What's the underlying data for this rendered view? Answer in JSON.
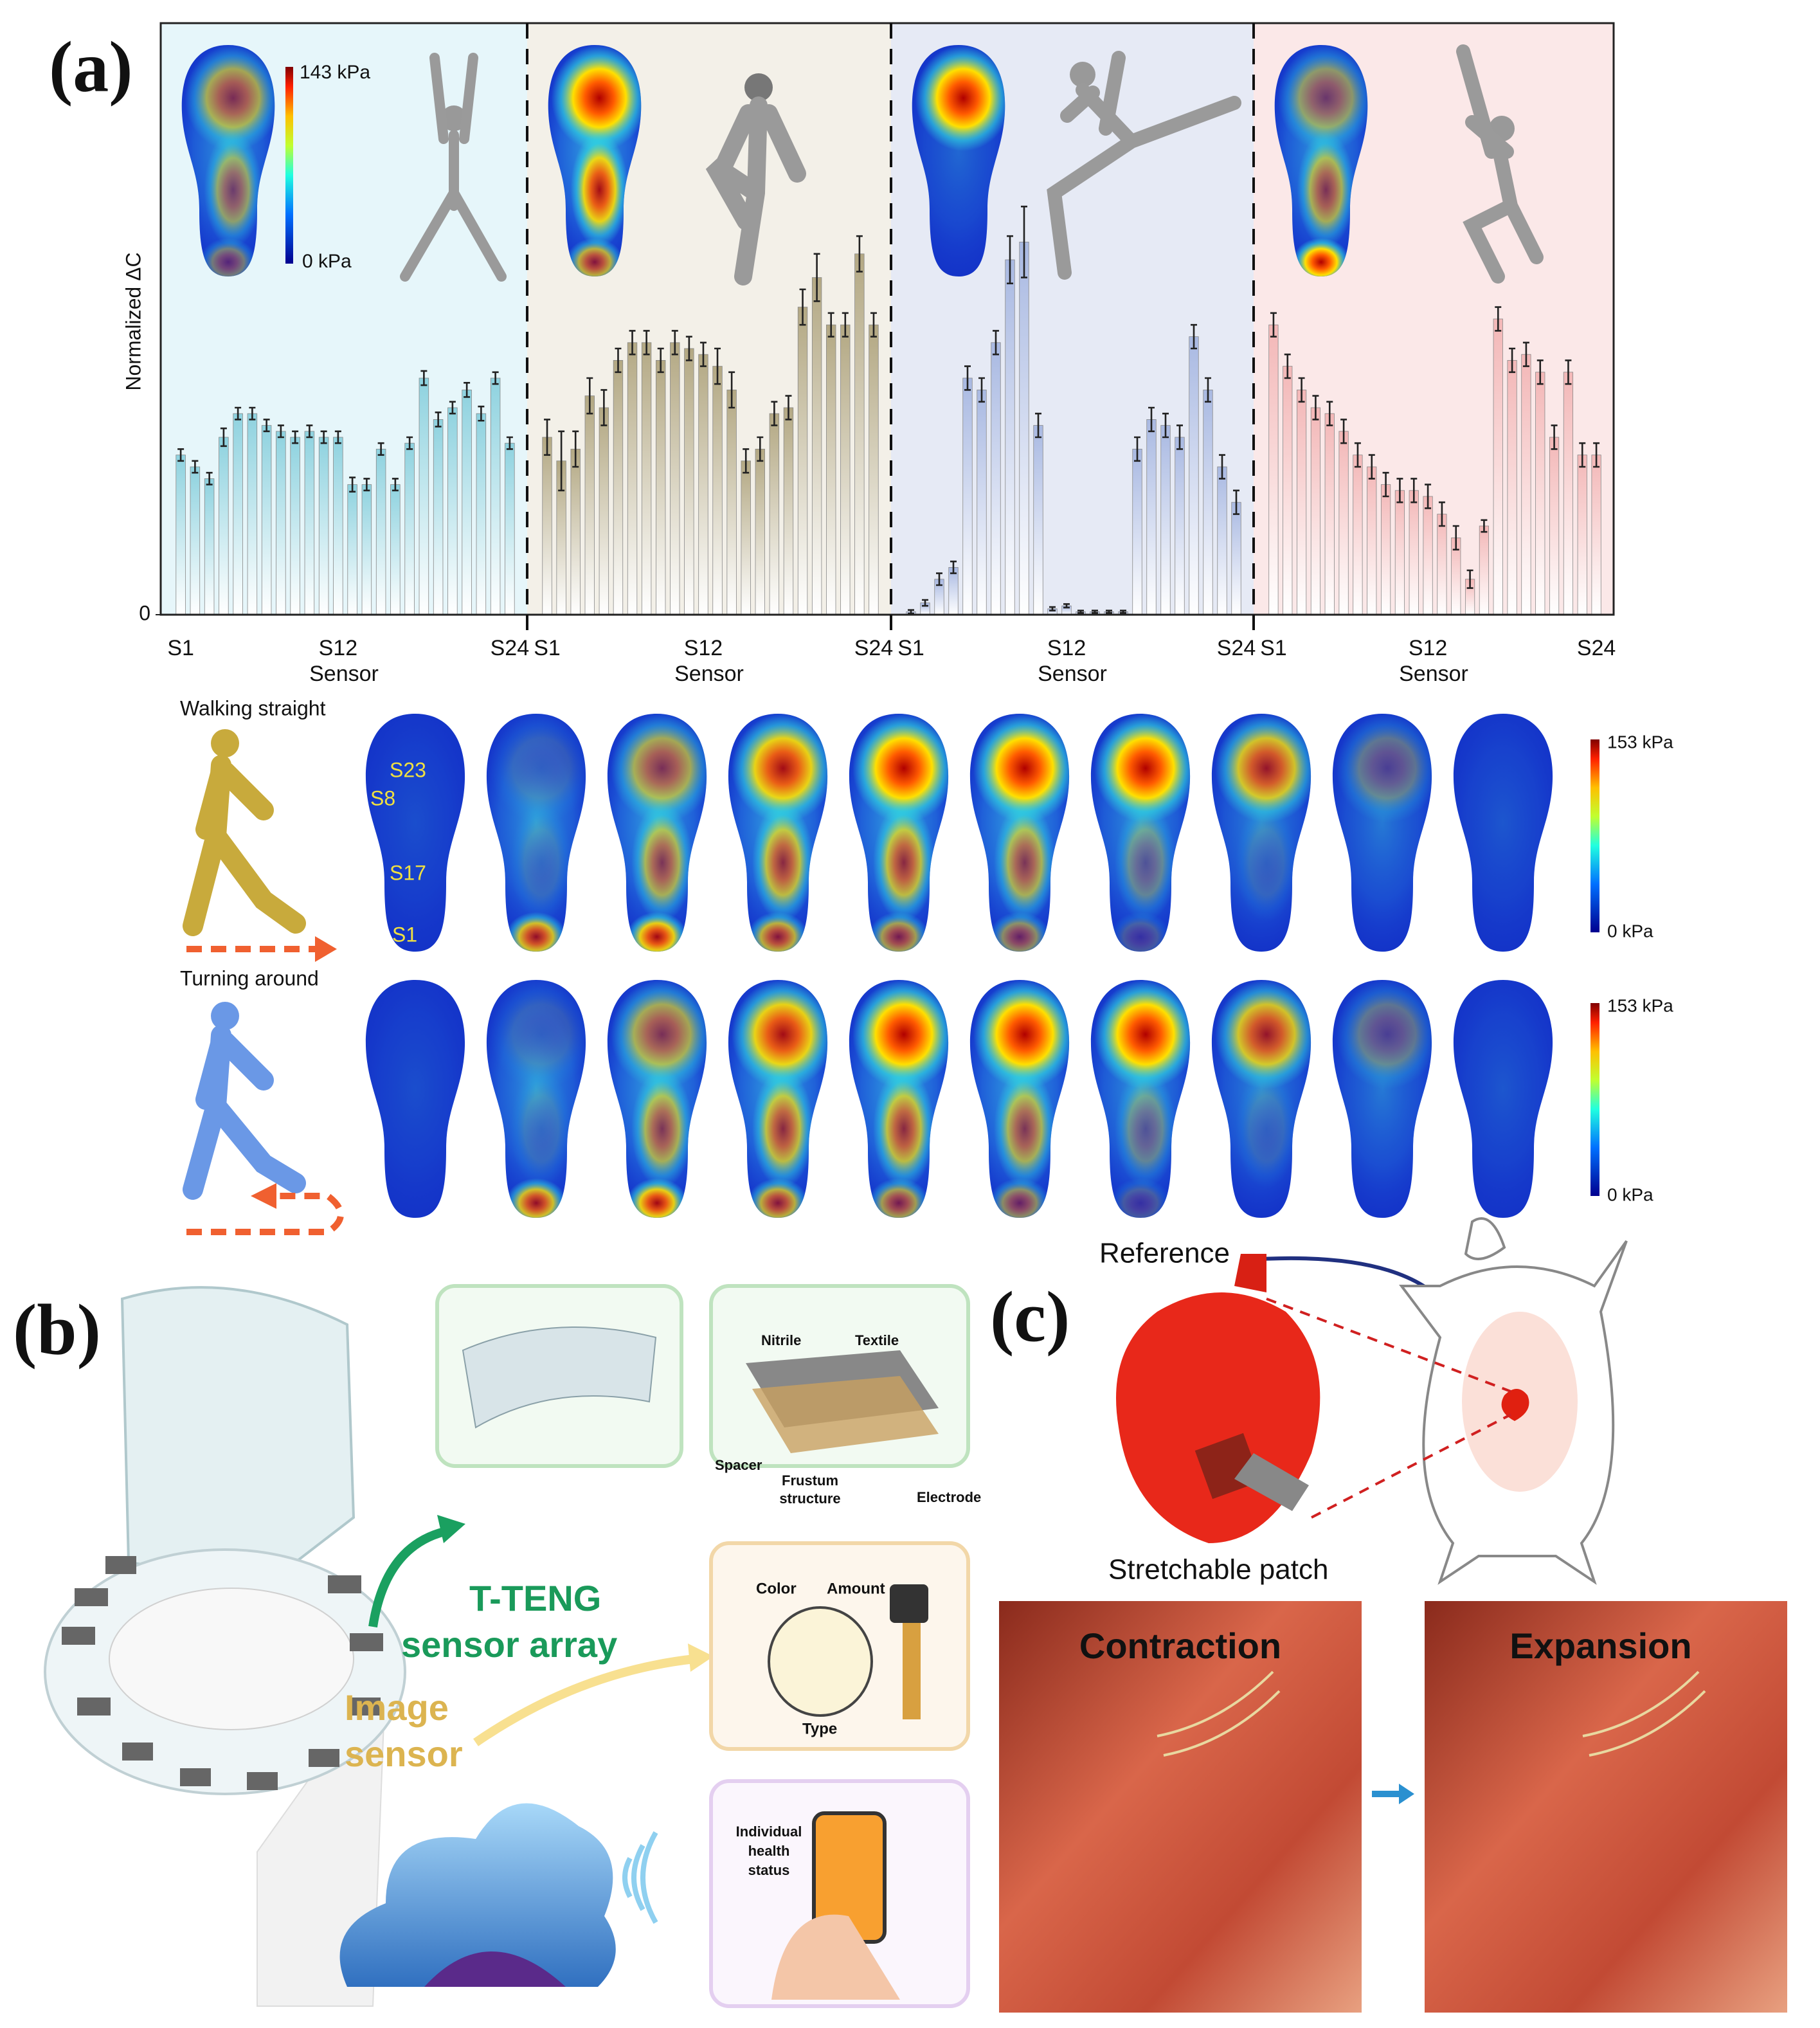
{
  "figure_labels": {
    "a": "(a)",
    "b": "(b)",
    "c": "(c)"
  },
  "chart_data": [
    {
      "type": "bar",
      "ylabel": "Normalized ΔC",
      "xlabel": "Sensor",
      "color": "#8ed2df",
      "background": "#e6f6fa",
      "categories": [
        "S1",
        null,
        null,
        null,
        null,
        null,
        null,
        null,
        null,
        null,
        null,
        "S12",
        null,
        null,
        null,
        null,
        null,
        null,
        null,
        null,
        null,
        null,
        null,
        "S24"
      ],
      "values": [
        0.27,
        0.25,
        0.23,
        0.3,
        0.34,
        0.34,
        0.32,
        0.31,
        0.3,
        0.31,
        0.3,
        0.3,
        0.22,
        0.22,
        0.28,
        0.22,
        0.29,
        0.4,
        0.33,
        0.35,
        0.38,
        0.34,
        0.4,
        0.29
      ],
      "errors": [
        0.01,
        0.01,
        0.01,
        0.015,
        0.01,
        0.01,
        0.01,
        0.01,
        0.01,
        0.01,
        0.01,
        0.01,
        0.012,
        0.01,
        0.01,
        0.01,
        0.01,
        0.012,
        0.012,
        0.01,
        0.012,
        0.012,
        0.01,
        0.01
      ],
      "ylim": [
        0,
        1
      ],
      "yticks": [
        0
      ]
    },
    {
      "type": "bar",
      "xlabel": "Sensor",
      "color": "#b3a883",
      "background": "#f3f0e8",
      "categories": [
        "S1",
        null,
        null,
        null,
        null,
        null,
        null,
        null,
        null,
        null,
        null,
        "S12",
        null,
        null,
        null,
        null,
        null,
        null,
        null,
        null,
        null,
        null,
        null,
        "S24"
      ],
      "values": [
        0.3,
        0.26,
        0.28,
        0.37,
        0.35,
        0.43,
        0.46,
        0.46,
        0.43,
        0.46,
        0.45,
        0.44,
        0.42,
        0.38,
        0.26,
        0.28,
        0.34,
        0.35,
        0.52,
        0.57,
        0.49,
        0.49,
        0.61,
        0.49
      ],
      "errors": [
        0.03,
        0.05,
        0.03,
        0.03,
        0.03,
        0.02,
        0.02,
        0.02,
        0.02,
        0.02,
        0.02,
        0.02,
        0.03,
        0.03,
        0.02,
        0.02,
        0.02,
        0.02,
        0.03,
        0.04,
        0.02,
        0.02,
        0.03,
        0.02
      ],
      "ylim": [
        0,
        1
      ]
    },
    {
      "type": "bar",
      "xlabel": "Sensor",
      "color": "#a9b9e2",
      "background": "#e6eaf5",
      "categories": [
        "S1",
        null,
        null,
        null,
        null,
        null,
        null,
        null,
        null,
        null,
        null,
        "S12",
        null,
        null,
        null,
        null,
        null,
        null,
        null,
        null,
        null,
        null,
        null,
        "S24"
      ],
      "values": [
        0.005,
        0.02,
        0.06,
        0.08,
        0.4,
        0.38,
        0.46,
        0.6,
        0.63,
        0.32,
        0.01,
        0.015,
        0.005,
        0.005,
        0.005,
        0.005,
        0.28,
        0.33,
        0.32,
        0.3,
        0.47,
        0.38,
        0.25,
        0.19
      ],
      "errors": [
        0.003,
        0.005,
        0.01,
        0.01,
        0.02,
        0.02,
        0.02,
        0.04,
        0.06,
        0.02,
        0.003,
        0.003,
        0.002,
        0.002,
        0.002,
        0.002,
        0.02,
        0.02,
        0.02,
        0.02,
        0.02,
        0.02,
        0.02,
        0.02
      ],
      "ylim": [
        0,
        1
      ]
    },
    {
      "type": "bar",
      "xlabel": "Sensor",
      "color": "#f3b7b7",
      "background": "#fbe8e8",
      "categories": [
        "S1",
        null,
        null,
        null,
        null,
        null,
        null,
        null,
        null,
        null,
        null,
        "S12",
        null,
        null,
        null,
        null,
        null,
        null,
        null,
        null,
        null,
        null,
        null,
        "S24"
      ],
      "values": [
        0.49,
        0.42,
        0.38,
        0.35,
        0.34,
        0.31,
        0.27,
        0.25,
        0.22,
        0.21,
        0.21,
        0.2,
        0.17,
        0.13,
        0.06,
        0.15,
        0.5,
        0.43,
        0.44,
        0.41,
        0.3,
        0.41,
        0.27,
        0.27
      ],
      "errors": [
        0.02,
        0.02,
        0.02,
        0.02,
        0.02,
        0.02,
        0.02,
        0.02,
        0.02,
        0.02,
        0.02,
        0.02,
        0.02,
        0.02,
        0.015,
        0.01,
        0.02,
        0.02,
        0.02,
        0.02,
        0.02,
        0.02,
        0.02,
        0.02
      ],
      "ylim": [
        0,
        1
      ]
    }
  ],
  "pose_scale": {
    "max": "143 kPa",
    "min": "0 kPa"
  },
  "gait": {
    "rows": [
      {
        "label": "Walking straight",
        "scale_max": "153 kPa",
        "scale_min": "0 kPa"
      },
      {
        "label": "Turning around",
        "scale_max": "153 kPa",
        "scale_min": "0 kPa"
      }
    ],
    "sensor_labels": [
      "S23",
      "S8",
      "S17",
      "S1"
    ]
  },
  "panel_b": {
    "layers": [
      "Nitrile",
      "Textile",
      "Spacer",
      "Electrode"
    ],
    "frustum": [
      "Frustum",
      "structure"
    ],
    "array": [
      "T-TENG",
      "sensor array"
    ],
    "image": [
      "Image",
      "sensor"
    ],
    "analysis": [
      "Color",
      "Amount",
      "Type"
    ],
    "health": [
      "Individual",
      "health",
      "status"
    ]
  },
  "panel_c": {
    "reference": "Reference",
    "patch": "Stretchable patch",
    "photos": [
      "Contraction",
      "Expansion"
    ]
  }
}
